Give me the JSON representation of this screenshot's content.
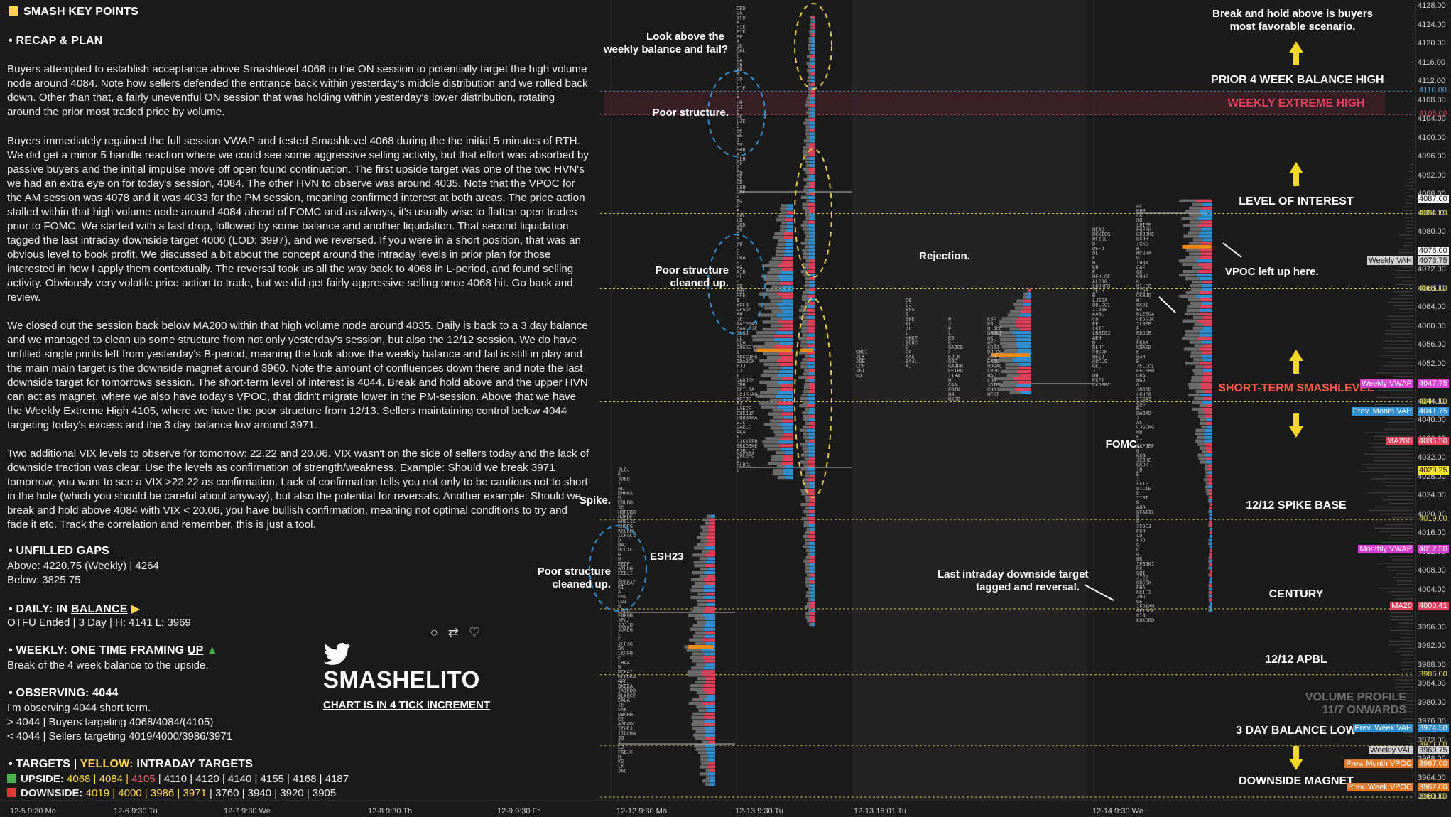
{
  "notes": {
    "title": "SMASH KEY POINTS",
    "recap_header": "• RECAP & PLAN",
    "paragraphs": [
      "Buyers attempted to establish acceptance above Smashlevel 4068 in the ON session to potentially target the high volume node around 4084. Note how sellers defended the entrance back within yesterday's middle distribution and we rolled back down. Other than that, a fairly uneventful ON session that was holding within yesterday's lower distribution, rotating around the prior most traded price by volume.",
      "Buyers immediately regained the full session VWAP and tested Smashlevel 4068 during the the initial 5 minutes of RTH. We did get a minor 5 handle reaction where we could see some aggressive selling activity, but that effort was absorbed by passive buyers and the initial impulse move off open found continuation. The first upside target was one of the two HVN's we had an extra eye on for today's session, 4084. The other HVN to observe was around 4035. Note that the VPOC for the AM session was 4078 and it was 4033 for the PM session, meaning confirmed interest at both areas. The price action stalled within that high volume node around 4084 ahead of FOMC and as always, it's usually wise to flatten open trades prior to FOMC. We started with a fast drop, followed by some balance and another liquidation. That second liquidation tagged the last intraday downside target 4000 (LOD: 3997), and we reversed. If you were in a short position, that was an obvious level to book profit. We discussed a bit about the concept around the intraday levels in prior plan for those interested in how I apply them contextually. The reversal took us all the way back to 4068 in L-period, and found selling activity. Obviously very volatile price action to trade, but we did get fairly aggressive selling once 4068 hit. Go back and review.",
      "We closed out the session back below MA200 within that high volume node around 4035. Daily is back to a 3 day balance and we managed to clean up some structure from not only yesterday's session, but also the 12/12 session. We do have unfilled single prints left from yesterday's B-period, meaning the look above the weekly balance and fail is still in play and the main main target is the downside magnet around 3960. Note the amount of confluences down there and note the last downside target for tomorrows session. The short-term level of interest is 4044. Break and hold above and the upper HVN can act as magnet, where we also have today's VPOC, that didn't migrate lower in the PM-session. Above that we have the Weekly Extreme High 4105, where we have the poor structure from 12/13. Sellers maintaining control below 4044 targeting today's excess and the 3 day balance low around 3971.",
      "Two additional VIX levels to observe for tomorrow: 22.22 and 20.06. VIX wasn't on the side of sellers today and the lack of downside traction was clear. Use the levels as confirmation of strength/weakness. Example: Should we break 3971 tomorrow, you want to see a VIX >22.22 as confirmation. Lack of confirmation tells you not only to be cautious not to short in the hole (which you should be careful about anyway), but also the potential for reversals. Another example: Should we break and hold above 4084 with VIX < 20.06, you have bullish confirmation, meaning not optimal conditions to try and fade it etc. Track the correlation and remember, this is just a tool."
    ],
    "gaps_header": "• UNFILLED GAPS",
    "gaps_above": "Above: 4220.75 (Weekly) | 4264",
    "gaps_below": "Below: 3825.75",
    "daily_prefix": "• DAILY: IN ",
    "daily_word": "BALANCE",
    "daily_text": "OTFU Ended | 3 Day | H: 4141 L: 3969",
    "weekly_prefix": "• WEEKLY: ONE TIME FRAMING ",
    "weekly_word": "UP",
    "weekly_text": "Break of the 4 week balance to the upside.",
    "observing_header": "• OBSERVING: 4044",
    "observing_lines": [
      "I'm observing 4044 short term.",
      "> 4044 | Buyers targeting 4068/4084/(4105)",
      "< 4044 | Sellers targeting 4019/4000/3986/3971"
    ],
    "targets_header_a": "• TARGETS  |  ",
    "targets_header_b": "YELLOW: ",
    "targets_header_c": "INTRADAY TARGETS",
    "upside_label": "UPSIDE: ",
    "upside_yellow": "4068 | 4084 | ",
    "upside_red": "4105",
    "upside_rest": " | 4110 | 4120 | 4140 | 4155 | 4168 | 4187",
    "downside_label": "DOWNSIDE: ",
    "downside_yellow": "4019 | 4000 | 3986 | 3971",
    "downside_rest": " | 3760 | 3940 | 3920 | 3905"
  },
  "logo": {
    "brand": "SMASHELITO",
    "sub": "CHART IS IN 4 TICK INCREMENT"
  },
  "annotations": {
    "look_above": "Look above the\nweekly balance and fail?",
    "poor_structure": "Poor structure.",
    "poor_cleaned_1": "Poor structure\ncleaned up.",
    "rejection": "Rejection.",
    "spike": "Spike.",
    "esh23": "ESH23",
    "poor_cleaned_2": "Poor structure\ncleaned up.",
    "fomc": "FOMC.",
    "vpoc_left": "VPOC left up here.",
    "last_target": "Last intraday downside target\ntagged and reversal.",
    "break_hold": "Break and hold above is buyers\nmost favorable scenario.",
    "volume_profile": "VOLUME PROFILE\n11/7 ONWARDS"
  },
  "levels": [
    {
      "label": "PRIOR 4 WEEK BALANCE HIGH",
      "price": 4110.0,
      "color": "#ffffff"
    },
    {
      "label": "WEEKLY EXTREME HIGH",
      "price": 4105.0,
      "color": "#e0405a"
    },
    {
      "label": "LEVEL OF INTEREST",
      "price": 4084.0,
      "color": "#ffffff"
    },
    {
      "label": "SHORT-TERM SMASHLEVEL",
      "price": 4044.0,
      "color": "#ff5a4a"
    },
    {
      "label": "12/12 SPIKE BASE",
      "price": 4019.0,
      "color": "#ffffff"
    },
    {
      "label": "CENTURY",
      "price": 4000.0,
      "color": "#ffffff"
    },
    {
      "label": "12/12 APBL",
      "price": 3986.0,
      "color": "#ffffff"
    },
    {
      "label": "3 DAY BALANCE LOW",
      "price": 3971.0,
      "color": "#ffffff"
    },
    {
      "label": "DOWNSIDE MAGNET",
      "price": 3960.0,
      "color": "#ffffff"
    }
  ],
  "chart_data": {
    "type": "market-profile",
    "y_axis": {
      "min": 3958,
      "max": 4130,
      "ticks": [
        4128,
        4124,
        4120,
        4116,
        4112,
        4108,
        4104,
        4100,
        4096,
        4092,
        4088,
        4084,
        4080,
        4076,
        4072,
        4068,
        4064,
        4060,
        4056,
        4052,
        4048,
        4044,
        4040,
        4036,
        4032,
        4028,
        4024,
        4020,
        4016,
        4012,
        4008,
        4004,
        4000,
        3996,
        3992,
        3988,
        3984,
        3980,
        3976,
        3972,
        3968,
        3964,
        3960
      ]
    },
    "x_labels": [
      "12-5  9:30 Mo",
      "12-6  9:30 Tu",
      "12-7  9:30 We",
      "12-8  9:30 Th",
      "12-9  9:30 Fr",
      "12-12  9:30 Mo",
      "12-13  9:30 Tu",
      "12-13  16:01 Tu",
      "12-14  9:30 We"
    ],
    "price_labels": [
      {
        "text": "4110.00",
        "price": 4110.0,
        "fg": "#4fa3e0",
        "bg": ""
      },
      {
        "text": "4105.00",
        "price": 4105.0,
        "fg": "#e0405a",
        "bg": ""
      },
      {
        "text": "4087.00",
        "price": 4087.0,
        "fg": "#111111",
        "bg": "#ffffff"
      },
      {
        "text": "4084.00",
        "price": 4084.0,
        "fg": "#e6d84a",
        "bg": ""
      },
      {
        "text": "4076.00",
        "price": 4076.0,
        "fg": "#111111",
        "bg": "#ffffff"
      },
      {
        "text": "4073.75",
        "price": 4073.75,
        "fg": "#111111",
        "bg": "#cfcfcf"
      },
      {
        "text": "4068.00",
        "price": 4068.0,
        "fg": "#e6d84a",
        "bg": ""
      },
      {
        "text": "4047.75",
        "price": 4047.75,
        "fg": "#ffffff",
        "bg": "#d43fd0"
      },
      {
        "text": "4044.00",
        "price": 4044.0,
        "fg": "#e6d84a",
        "bg": ""
      },
      {
        "text": "4041.75",
        "price": 4041.75,
        "fg": "#ffffff",
        "bg": "#2f8fd0"
      },
      {
        "text": "4035.50",
        "price": 4035.5,
        "fg": "#ffffff",
        "bg": "#e0405a"
      },
      {
        "text": "4029.25",
        "price": 4029.25,
        "fg": "#111111",
        "bg": "#ffe62a"
      },
      {
        "text": "4019.00",
        "price": 4019.0,
        "fg": "#e6d84a",
        "bg": ""
      },
      {
        "text": "4012.50",
        "price": 4012.5,
        "fg": "#ffffff",
        "bg": "#d43fd0"
      },
      {
        "text": "4000.41",
        "price": 4000.41,
        "fg": "#ffffff",
        "bg": "#e0405a"
      },
      {
        "text": "3986.00",
        "price": 3986.0,
        "fg": "#e6d84a",
        "bg": ""
      },
      {
        "text": "3974.50",
        "price": 3974.5,
        "fg": "#ffffff",
        "bg": "#2f8fd0"
      },
      {
        "text": "3971.00",
        "price": 3971.0,
        "fg": "#e6d84a",
        "bg": ""
      },
      {
        "text": "3969.75",
        "price": 3969.75,
        "fg": "#111111",
        "bg": "#cfcfcf"
      },
      {
        "text": "3967.00",
        "price": 3967.0,
        "fg": "#ffffff",
        "bg": "#e07a2a"
      },
      {
        "text": "3962.00",
        "price": 3962.0,
        "fg": "#ffffff",
        "bg": "#e07a2a"
      },
      {
        "text": "3960.00",
        "price": 3960.0,
        "fg": "#e6d84a",
        "bg": ""
      }
    ],
    "indicator_tags": [
      {
        "text": "Weekly VAH",
        "price": 4073.75,
        "fg": "#111111",
        "bg": "#cfcfcf"
      },
      {
        "text": "Weekly VWAP",
        "price": 4047.75,
        "fg": "#ffffff",
        "bg": "#d43fd0"
      },
      {
        "text": "Prev. Month VAH",
        "price": 4041.75,
        "fg": "#ffffff",
        "bg": "#2f8fd0"
      },
      {
        "text": "MA200",
        "price": 4035.5,
        "fg": "#ffffff",
        "bg": "#e0405a"
      },
      {
        "text": "Monthly VWAP",
        "price": 4012.5,
        "fg": "#ffffff",
        "bg": "#d43fd0"
      },
      {
        "text": "MA20",
        "price": 4000.41,
        "fg": "#ffffff",
        "bg": "#e0405a"
      },
      {
        "text": "Prev. Week VAH",
        "price": 3974.5,
        "fg": "#ffffff",
        "bg": "#2f8fd0"
      },
      {
        "text": "Weekly VAL",
        "price": 3969.75,
        "fg": "#111111",
        "bg": "#cfcfcf"
      },
      {
        "text": "Prev. Month VPOC",
        "price": 3967.0,
        "fg": "#ffffff",
        "bg": "#e07a2a"
      },
      {
        "text": "Prev. Week VPOC",
        "price": 3962.0,
        "fg": "#ffffff",
        "bg": "#e07a2a"
      }
    ],
    "dotted_levels": [
      4110,
      4105,
      4084,
      4068,
      4044,
      4019,
      4000,
      3986,
      3971,
      3960
    ],
    "colors": {
      "buy": "#2f8fd0",
      "sell": "#e0405a",
      "neutral": "#6a6a6a",
      "poc": "#f08a1a",
      "level": "#e6d84a"
    }
  }
}
